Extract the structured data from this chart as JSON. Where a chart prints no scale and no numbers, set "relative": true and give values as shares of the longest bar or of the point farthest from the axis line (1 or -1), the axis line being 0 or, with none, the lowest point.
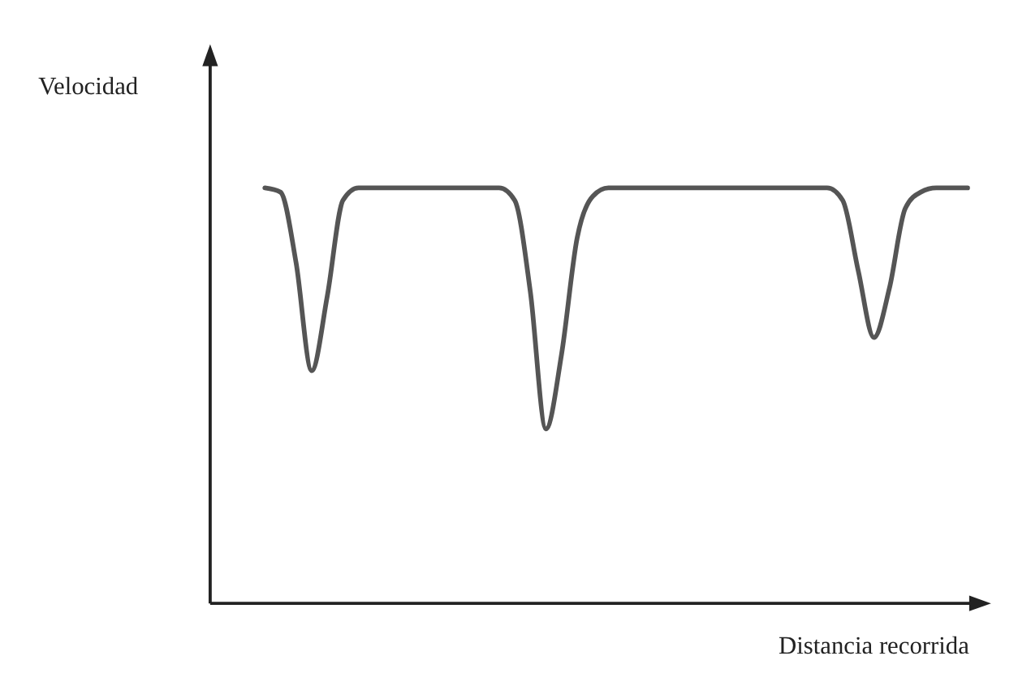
{
  "chart_data": {
    "type": "line",
    "relative": true,
    "xlabel": "Distancia recorrida",
    "ylabel": "Velocidad",
    "color": "#555555",
    "marker": "none",
    "categories": [
      null,
      null,
      null,
      null,
      null,
      null,
      null,
      null,
      null,
      null,
      null,
      null,
      null,
      null,
      null,
      null,
      null,
      null,
      null,
      null,
      null,
      null,
      null,
      null,
      null,
      null,
      null,
      null,
      null,
      null,
      null,
      null,
      null,
      null,
      null,
      null,
      null,
      null,
      null,
      null,
      null,
      null,
      null,
      null,
      null,
      null,
      null,
      null,
      null,
      null
    ],
    "values": [
      null,
      null,
      null,
      1,
      0.99,
      0.82,
      0.56,
      0.74,
      0.97,
      1,
      1,
      1,
      1,
      1,
      1,
      1,
      1,
      1,
      1,
      0.97,
      0.75,
      0.42,
      0.6,
      0.88,
      0.98,
      1,
      1,
      1,
      1,
      1,
      1,
      1,
      1,
      1,
      1,
      1,
      1,
      1,
      1,
      1,
      0.97,
      0.8,
      0.64,
      0.76,
      0.95,
      0.99,
      1,
      1,
      1,
      null
    ]
  }
}
